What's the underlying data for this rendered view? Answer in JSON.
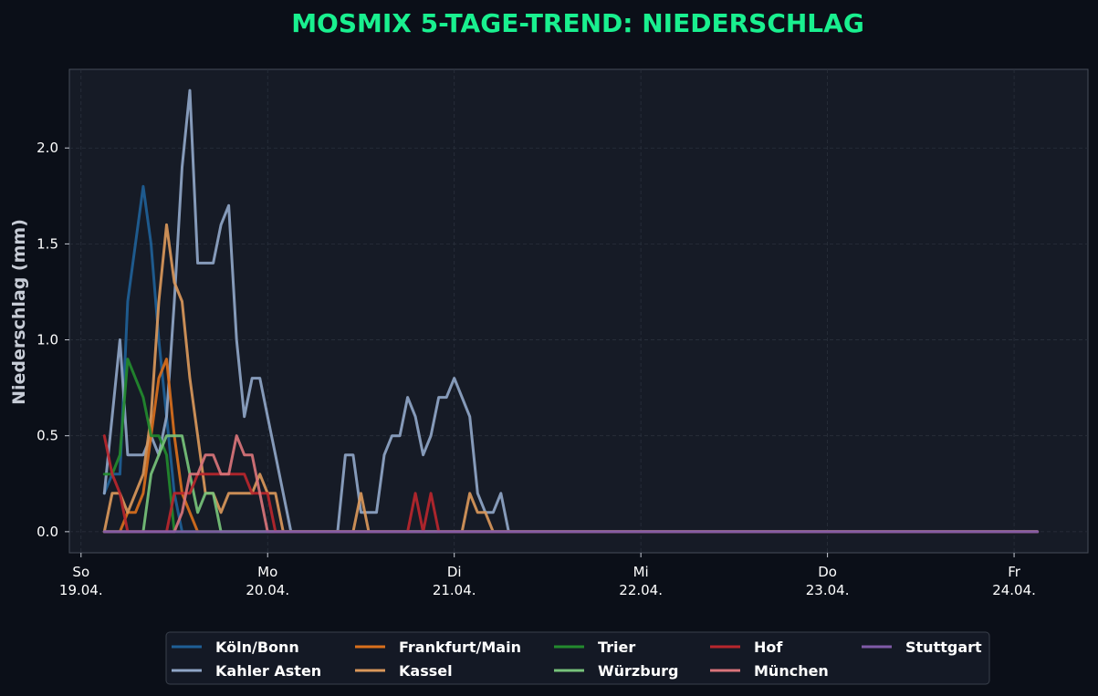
{
  "colors": {
    "background": "#0b0f18",
    "plot_background": "#161b26",
    "title": "#19f08f",
    "grid": "#2a303c",
    "axis_frame": "#474d59"
  },
  "chart_data": {
    "type": "line",
    "title": "MOSMIX 5-TAGE-TREND: NIEDERSCHLAG",
    "ylabel": "Niederschlag (mm)",
    "xlabel": "",
    "xlim_hours": [
      -1.5,
      129.5
    ],
    "ylim": [
      -0.11,
      2.41
    ],
    "yticks": [
      0.0,
      0.5,
      1.0,
      1.5,
      2.0
    ],
    "ytick_labels": [
      "0.0",
      "0.5",
      "1.0",
      "1.5",
      "2.0"
    ],
    "xticks": [
      {
        "hours": 0,
        "day": "So",
        "date": "19.04."
      },
      {
        "hours": 24,
        "day": "Mo",
        "date": "20.04."
      },
      {
        "hours": 48,
        "day": "Di",
        "date": "21.04."
      },
      {
        "hours": 72,
        "day": "Mi",
        "date": "22.04."
      },
      {
        "hours": 96,
        "day": "Do",
        "date": "23.04."
      },
      {
        "hours": 120,
        "day": "Fr",
        "date": "24.04."
      }
    ],
    "x_unit": "hours since 19.04. 00:00",
    "x_start": 3,
    "x_end": 123,
    "grid": true,
    "legend_position": "bottom-center",
    "series": [
      {
        "name": "Köln/Bonn",
        "color": "#1f5f96",
        "points": [
          [
            3,
            0.2
          ],
          [
            4,
            0.3
          ],
          [
            5,
            0.3
          ],
          [
            6,
            1.2
          ],
          [
            7,
            1.5
          ],
          [
            8,
            1.8
          ],
          [
            9,
            1.5
          ],
          [
            10,
            1.0
          ],
          [
            11,
            0.6
          ],
          [
            12,
            0.2
          ],
          [
            13,
            0.0
          ]
        ]
      },
      {
        "name": "Kahler Asten",
        "color": "#8fa5c6",
        "points": [
          [
            3,
            0.2
          ],
          [
            4,
            0.6
          ],
          [
            5,
            1.0
          ],
          [
            6,
            0.4
          ],
          [
            7,
            0.4
          ],
          [
            8,
            0.4
          ],
          [
            9,
            0.5
          ],
          [
            10,
            0.4
          ],
          [
            11,
            0.6
          ],
          [
            12,
            1.2
          ],
          [
            13,
            1.9
          ],
          [
            14,
            2.3
          ],
          [
            15,
            1.4
          ],
          [
            16,
            1.4
          ],
          [
            17,
            1.4
          ],
          [
            18,
            1.6
          ],
          [
            19,
            1.7
          ],
          [
            20,
            1.0
          ],
          [
            21,
            0.6
          ],
          [
            22,
            0.8
          ],
          [
            23,
            0.8
          ],
          [
            24,
            0.6
          ],
          [
            25,
            0.4
          ],
          [
            26,
            0.2
          ],
          [
            27,
            0.0
          ],
          [
            33,
            0.0
          ],
          [
            34,
            0.4
          ],
          [
            35,
            0.4
          ],
          [
            36,
            0.1
          ],
          [
            37,
            0.1
          ],
          [
            38,
            0.1
          ],
          [
            39,
            0.4
          ],
          [
            40,
            0.5
          ],
          [
            41,
            0.5
          ],
          [
            42,
            0.7
          ],
          [
            43,
            0.6
          ],
          [
            44,
            0.4
          ],
          [
            45,
            0.5
          ],
          [
            46,
            0.7
          ],
          [
            47,
            0.7
          ],
          [
            48,
            0.8
          ],
          [
            49,
            0.7
          ],
          [
            50,
            0.6
          ],
          [
            51,
            0.2
          ],
          [
            52,
            0.1
          ],
          [
            53,
            0.1
          ],
          [
            54,
            0.2
          ],
          [
            55,
            0.0
          ]
        ]
      },
      {
        "name": "Frankfurt/Main",
        "color": "#d96f1c",
        "points": [
          [
            3,
            0.0
          ],
          [
            5,
            0.0
          ],
          [
            6,
            0.1
          ],
          [
            7,
            0.1
          ],
          [
            8,
            0.2
          ],
          [
            9,
            0.5
          ],
          [
            10,
            0.8
          ],
          [
            11,
            0.9
          ],
          [
            12,
            0.5
          ],
          [
            13,
            0.2
          ],
          [
            14,
            0.1
          ],
          [
            15,
            0.0
          ]
        ]
      },
      {
        "name": "Kassel",
        "color": "#d9975a",
        "points": [
          [
            3,
            0.0
          ],
          [
            4,
            0.2
          ],
          [
            5,
            0.2
          ],
          [
            6,
            0.1
          ],
          [
            7,
            0.2
          ],
          [
            8,
            0.3
          ],
          [
            9,
            0.6
          ],
          [
            10,
            1.2
          ],
          [
            11,
            1.6
          ],
          [
            12,
            1.3
          ],
          [
            13,
            1.2
          ],
          [
            14,
            0.8
          ],
          [
            15,
            0.5
          ],
          [
            16,
            0.2
          ],
          [
            17,
            0.2
          ],
          [
            18,
            0.1
          ],
          [
            19,
            0.2
          ],
          [
            20,
            0.2
          ],
          [
            21,
            0.2
          ],
          [
            22,
            0.2
          ],
          [
            23,
            0.3
          ],
          [
            24,
            0.2
          ],
          [
            25,
            0.2
          ],
          [
            26,
            0.0
          ],
          [
            35,
            0.0
          ],
          [
            36,
            0.2
          ],
          [
            37,
            0.0
          ],
          [
            48,
            0.0
          ],
          [
            49,
            0.0
          ],
          [
            50,
            0.2
          ],
          [
            51,
            0.1
          ],
          [
            52,
            0.1
          ],
          [
            53,
            0.0
          ]
        ]
      },
      {
        "name": "Trier",
        "color": "#238a2e",
        "points": [
          [
            3,
            0.3
          ],
          [
            4,
            0.3
          ],
          [
            5,
            0.4
          ],
          [
            6,
            0.9
          ],
          [
            7,
            0.8
          ],
          [
            8,
            0.7
          ],
          [
            9,
            0.5
          ],
          [
            10,
            0.5
          ],
          [
            11,
            0.4
          ],
          [
            12,
            0.0
          ]
        ]
      },
      {
        "name": "Würzburg",
        "color": "#77c27a",
        "points": [
          [
            3,
            0.0
          ],
          [
            8,
            0.0
          ],
          [
            9,
            0.3
          ],
          [
            10,
            0.4
          ],
          [
            11,
            0.5
          ],
          [
            12,
            0.5
          ],
          [
            13,
            0.5
          ],
          [
            14,
            0.3
          ],
          [
            15,
            0.1
          ],
          [
            16,
            0.2
          ],
          [
            17,
            0.2
          ],
          [
            18,
            0.0
          ]
        ]
      },
      {
        "name": "Hof",
        "color": "#b8262d",
        "points": [
          [
            3,
            0.5
          ],
          [
            4,
            0.3
          ],
          [
            5,
            0.2
          ],
          [
            6,
            0.0
          ],
          [
            11,
            0.0
          ],
          [
            12,
            0.2
          ],
          [
            13,
            0.2
          ],
          [
            14,
            0.2
          ],
          [
            15,
            0.3
          ],
          [
            16,
            0.3
          ],
          [
            17,
            0.3
          ],
          [
            18,
            0.3
          ],
          [
            19,
            0.3
          ],
          [
            20,
            0.3
          ],
          [
            21,
            0.3
          ],
          [
            22,
            0.2
          ],
          [
            23,
            0.2
          ],
          [
            24,
            0.2
          ],
          [
            25,
            0.0
          ],
          [
            42,
            0.0
          ],
          [
            43,
            0.2
          ],
          [
            44,
            0.0
          ],
          [
            45,
            0.2
          ],
          [
            46,
            0.0
          ]
        ]
      },
      {
        "name": "München",
        "color": "#d9747a",
        "points": [
          [
            3,
            0.0
          ],
          [
            12,
            0.0
          ],
          [
            13,
            0.1
          ],
          [
            14,
            0.3
          ],
          [
            15,
            0.3
          ],
          [
            16,
            0.4
          ],
          [
            17,
            0.4
          ],
          [
            18,
            0.3
          ],
          [
            19,
            0.3
          ],
          [
            20,
            0.5
          ],
          [
            21,
            0.4
          ],
          [
            22,
            0.4
          ],
          [
            23,
            0.2
          ],
          [
            24,
            0.0
          ]
        ]
      },
      {
        "name": "Stuttgart",
        "color": "#7f5aa8",
        "points": [
          [
            3,
            0.0
          ],
          [
            123,
            0.0
          ]
        ]
      }
    ]
  }
}
